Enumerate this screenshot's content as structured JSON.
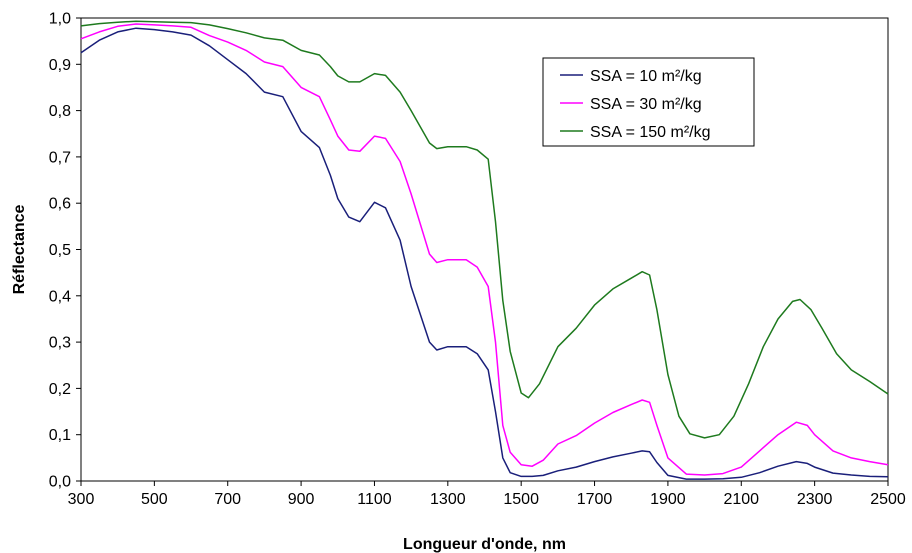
{
  "chart_data": {
    "type": "line",
    "title": "",
    "xlabel": "Longueur d'onde, nm",
    "ylabel": "Réflectance",
    "xlim": [
      300,
      2500
    ],
    "ylim": [
      0,
      1
    ],
    "x_ticks": [
      "300",
      "500",
      "700",
      "900",
      "1100",
      "1300",
      "1500",
      "1700",
      "1900",
      "2100",
      "2300",
      "2500"
    ],
    "y_ticks": [
      "0,0",
      "0,1",
      "0,2",
      "0,3",
      "0,4",
      "0,5",
      "0,6",
      "0,7",
      "0,8",
      "0,9",
      "1,0"
    ],
    "grid": false,
    "legend_position": "top-right",
    "series": [
      {
        "name": "SSA = 10 m²/kg",
        "color": "#1a1f7a",
        "points": [
          [
            300,
            0.925
          ],
          [
            350,
            0.952
          ],
          [
            400,
            0.97
          ],
          [
            450,
            0.978
          ],
          [
            500,
            0.975
          ],
          [
            550,
            0.97
          ],
          [
            600,
            0.963
          ],
          [
            650,
            0.94
          ],
          [
            700,
            0.91
          ],
          [
            750,
            0.88
          ],
          [
            800,
            0.84
          ],
          [
            850,
            0.83
          ],
          [
            900,
            0.755
          ],
          [
            950,
            0.72
          ],
          [
            980,
            0.66
          ],
          [
            1000,
            0.61
          ],
          [
            1030,
            0.57
          ],
          [
            1060,
            0.56
          ],
          [
            1100,
            0.602
          ],
          [
            1130,
            0.59
          ],
          [
            1170,
            0.52
          ],
          [
            1200,
            0.42
          ],
          [
            1250,
            0.3
          ],
          [
            1270,
            0.283
          ],
          [
            1300,
            0.29
          ],
          [
            1350,
            0.29
          ],
          [
            1380,
            0.275
          ],
          [
            1410,
            0.24
          ],
          [
            1430,
            0.15
          ],
          [
            1450,
            0.05
          ],
          [
            1470,
            0.018
          ],
          [
            1500,
            0.01
          ],
          [
            1530,
            0.01
          ],
          [
            1560,
            0.012
          ],
          [
            1600,
            0.022
          ],
          [
            1650,
            0.03
          ],
          [
            1700,
            0.042
          ],
          [
            1750,
            0.052
          ],
          [
            1800,
            0.06
          ],
          [
            1830,
            0.065
          ],
          [
            1850,
            0.063
          ],
          [
            1870,
            0.04
          ],
          [
            1900,
            0.012
          ],
          [
            1950,
            0.004
          ],
          [
            2000,
            0.004
          ],
          [
            2050,
            0.005
          ],
          [
            2100,
            0.008
          ],
          [
            2150,
            0.018
          ],
          [
            2200,
            0.032
          ],
          [
            2250,
            0.042
          ],
          [
            2280,
            0.038
          ],
          [
            2300,
            0.03
          ],
          [
            2350,
            0.017
          ],
          [
            2400,
            0.013
          ],
          [
            2450,
            0.01
          ],
          [
            2500,
            0.009
          ]
        ]
      },
      {
        "name": "SSA = 30 m²/kg",
        "color": "#ff00ff",
        "points": [
          [
            300,
            0.955
          ],
          [
            350,
            0.97
          ],
          [
            400,
            0.982
          ],
          [
            450,
            0.987
          ],
          [
            500,
            0.985
          ],
          [
            550,
            0.983
          ],
          [
            600,
            0.98
          ],
          [
            650,
            0.962
          ],
          [
            700,
            0.948
          ],
          [
            750,
            0.93
          ],
          [
            800,
            0.905
          ],
          [
            850,
            0.895
          ],
          [
            900,
            0.85
          ],
          [
            950,
            0.83
          ],
          [
            980,
            0.78
          ],
          [
            1000,
            0.745
          ],
          [
            1030,
            0.715
          ],
          [
            1060,
            0.712
          ],
          [
            1100,
            0.745
          ],
          [
            1130,
            0.74
          ],
          [
            1170,
            0.69
          ],
          [
            1200,
            0.62
          ],
          [
            1250,
            0.49
          ],
          [
            1270,
            0.472
          ],
          [
            1300,
            0.478
          ],
          [
            1350,
            0.478
          ],
          [
            1380,
            0.462
          ],
          [
            1410,
            0.42
          ],
          [
            1430,
            0.3
          ],
          [
            1450,
            0.12
          ],
          [
            1470,
            0.062
          ],
          [
            1500,
            0.035
          ],
          [
            1530,
            0.032
          ],
          [
            1560,
            0.045
          ],
          [
            1600,
            0.08
          ],
          [
            1650,
            0.098
          ],
          [
            1700,
            0.125
          ],
          [
            1750,
            0.148
          ],
          [
            1800,
            0.165
          ],
          [
            1830,
            0.175
          ],
          [
            1850,
            0.17
          ],
          [
            1870,
            0.12
          ],
          [
            1900,
            0.05
          ],
          [
            1950,
            0.015
          ],
          [
            2000,
            0.013
          ],
          [
            2050,
            0.016
          ],
          [
            2100,
            0.03
          ],
          [
            2150,
            0.065
          ],
          [
            2200,
            0.1
          ],
          [
            2250,
            0.127
          ],
          [
            2280,
            0.12
          ],
          [
            2300,
            0.1
          ],
          [
            2350,
            0.065
          ],
          [
            2400,
            0.05
          ],
          [
            2450,
            0.042
          ],
          [
            2500,
            0.035
          ]
        ]
      },
      {
        "name": "SSA = 150 m²/kg",
        "color": "#1e7a1e",
        "points": [
          [
            300,
            0.983
          ],
          [
            350,
            0.988
          ],
          [
            400,
            0.991
          ],
          [
            450,
            0.993
          ],
          [
            500,
            0.992
          ],
          [
            550,
            0.991
          ],
          [
            600,
            0.99
          ],
          [
            650,
            0.985
          ],
          [
            700,
            0.977
          ],
          [
            750,
            0.968
          ],
          [
            800,
            0.957
          ],
          [
            850,
            0.952
          ],
          [
            900,
            0.93
          ],
          [
            950,
            0.92
          ],
          [
            980,
            0.895
          ],
          [
            1000,
            0.875
          ],
          [
            1030,
            0.862
          ],
          [
            1060,
            0.862
          ],
          [
            1100,
            0.88
          ],
          [
            1130,
            0.876
          ],
          [
            1170,
            0.84
          ],
          [
            1200,
            0.8
          ],
          [
            1250,
            0.73
          ],
          [
            1270,
            0.718
          ],
          [
            1300,
            0.722
          ],
          [
            1350,
            0.722
          ],
          [
            1380,
            0.715
          ],
          [
            1410,
            0.695
          ],
          [
            1430,
            0.56
          ],
          [
            1450,
            0.39
          ],
          [
            1470,
            0.28
          ],
          [
            1500,
            0.19
          ],
          [
            1520,
            0.18
          ],
          [
            1550,
            0.21
          ],
          [
            1600,
            0.29
          ],
          [
            1650,
            0.33
          ],
          [
            1700,
            0.38
          ],
          [
            1750,
            0.415
          ],
          [
            1800,
            0.438
          ],
          [
            1830,
            0.452
          ],
          [
            1850,
            0.445
          ],
          [
            1870,
            0.37
          ],
          [
            1900,
            0.23
          ],
          [
            1930,
            0.14
          ],
          [
            1960,
            0.102
          ],
          [
            2000,
            0.093
          ],
          [
            2040,
            0.1
          ],
          [
            2080,
            0.14
          ],
          [
            2120,
            0.21
          ],
          [
            2160,
            0.29
          ],
          [
            2200,
            0.35
          ],
          [
            2240,
            0.388
          ],
          [
            2260,
            0.392
          ],
          [
            2290,
            0.37
          ],
          [
            2320,
            0.33
          ],
          [
            2360,
            0.275
          ],
          [
            2400,
            0.24
          ],
          [
            2450,
            0.215
          ],
          [
            2500,
            0.188
          ]
        ]
      }
    ]
  }
}
